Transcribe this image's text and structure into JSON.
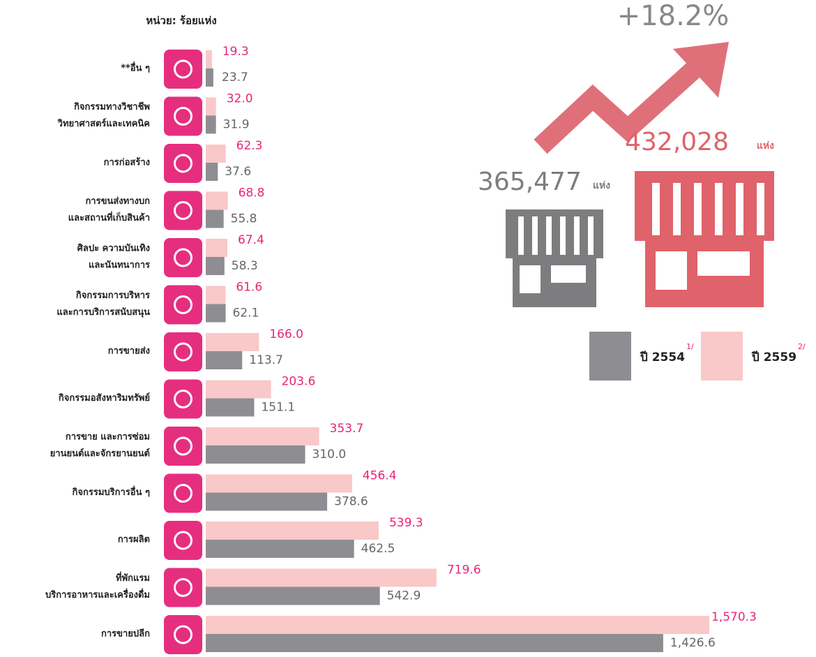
{
  "chart_data": {
    "type": "bar",
    "orientation": "horizontal",
    "unit_label": "หน่วย: ร้อยแห่ง",
    "growth_label": "+18.2%",
    "totals": [
      {
        "value": 365477,
        "label": "365,477",
        "unit": "แห่ง",
        "color": "#7d7d80"
      },
      {
        "value": 432028,
        "label": "432,028",
        "unit": "แห่ง",
        "color": "#e0626a"
      }
    ],
    "categories": [
      [
        "**อื่น ๆ"
      ],
      [
        "กิจกรรมทางวิชาชีพ",
        "วิทยาศาสตร์และเทคนิค"
      ],
      [
        "การก่อสร้าง"
      ],
      [
        "การขนส่งทางบก",
        "และสถานที่เก็บสินค้า"
      ],
      [
        "ศิลปะ ความบันเทิง",
        "และนันทนาการ"
      ],
      [
        "กิจกรรมการบริหาร",
        "และการบริการสนับสนุน"
      ],
      [
        "การขายส่ง"
      ],
      [
        "กิจกรรมอสังหาริมทรัพย์"
      ],
      [
        "การขาย และการซ่อม",
        "ยานยนต์และจักรยานยนต์"
      ],
      [
        "กิจกรรมบริการอื่น ๆ"
      ],
      [
        "การผลิต"
      ],
      [
        "ที่พักแรม",
        "บริการอาหารและเครื่องดื่ม"
      ],
      [
        "การขายปลีก"
      ]
    ],
    "series": [
      {
        "name": "ปี 2559",
        "note": "2/",
        "color": "#f9c8c8",
        "label_color": "#e8247a",
        "values": [
          19.3,
          32.0,
          62.3,
          68.8,
          67.4,
          61.6,
          166.0,
          203.6,
          353.7,
          456.4,
          539.3,
          719.6,
          1570.3
        ],
        "value_labels": [
          "19.3",
          "32.0",
          "62.3",
          "68.8",
          "67.4",
          "61.6",
          "166.0",
          "203.6",
          "353.7",
          "456.4",
          "539.3",
          "719.6",
          "1,570.3"
        ]
      },
      {
        "name": "ปี 2554",
        "note": "1/",
        "color": "#8e8e92",
        "label_color": "#666666",
        "values": [
          23.7,
          31.9,
          37.6,
          55.8,
          58.3,
          62.1,
          113.7,
          151.1,
          310.0,
          378.6,
          462.5,
          542.9,
          1426.6
        ],
        "value_labels": [
          "23.7",
          "31.9",
          "37.6",
          "55.8",
          "58.3",
          "62.1",
          "113.7",
          "151.1",
          "310.0",
          "378.6",
          "462.5",
          "542.9",
          "1,426.6"
        ]
      }
    ]
  }
}
